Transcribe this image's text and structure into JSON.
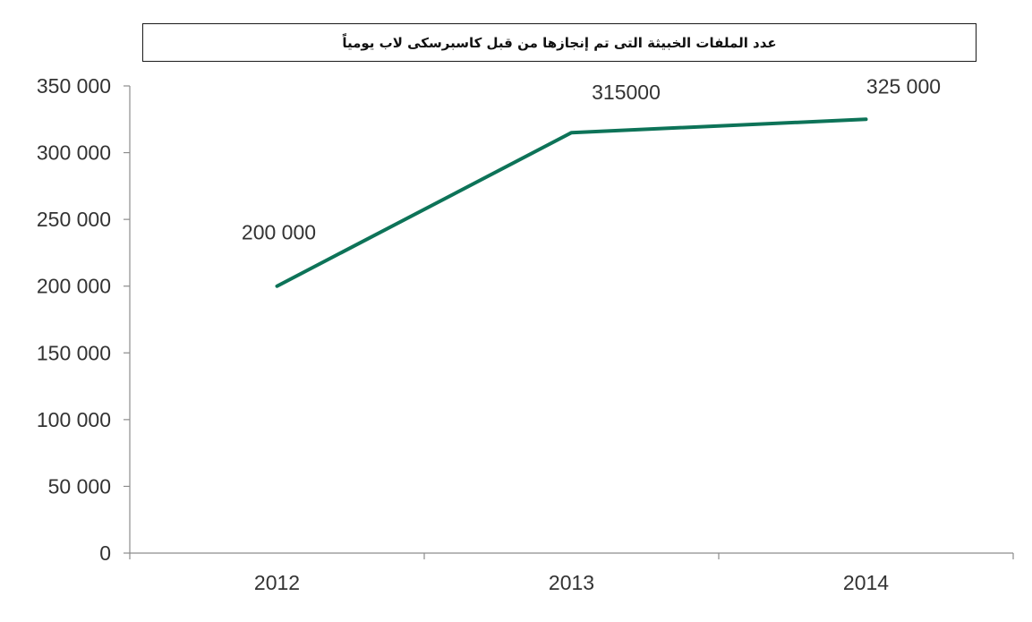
{
  "chart_data": {
    "type": "line",
    "title": "عدد الملفات الخبيثة التى تم إنجازها من قبل كاسبرسكى لاب يومياً",
    "categories": [
      "2012",
      "2013",
      "2014"
    ],
    "series": [
      {
        "values": [
          200000,
          315000,
          325000
        ],
        "color": "#0d7358",
        "data_labels": [
          "200 000",
          "315000",
          "325 000"
        ]
      }
    ],
    "ylim": [
      0,
      350000
    ],
    "y_ticks": [
      0,
      50000,
      100000,
      150000,
      200000,
      250000,
      300000,
      350000
    ],
    "y_tick_labels": [
      "0",
      "50 000",
      "100 000",
      "150 000",
      "200 000",
      "250 000",
      "300 000",
      "350 000"
    ],
    "xlabel": "",
    "ylabel": "",
    "grid": false,
    "legend": "none",
    "colors": {
      "axis": "#8c8c8c",
      "tick_text": "#333333"
    }
  }
}
